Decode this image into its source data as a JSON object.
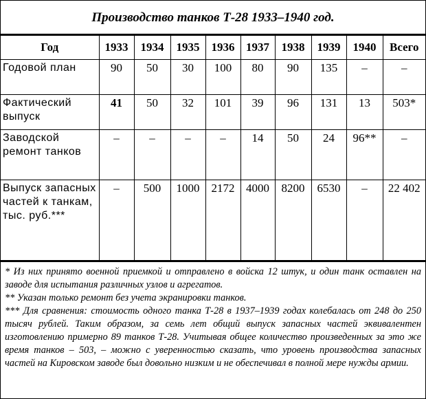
{
  "title": "Производство танков Т-28 1933–1940 год.",
  "header": [
    "Год",
    "1933",
    "1934",
    "1935",
    "1936",
    "1937",
    "1938",
    "1939",
    "1940",
    "Всего"
  ],
  "rows": [
    {
      "label": "Годовой план",
      "values": [
        "90",
        "50",
        "30",
        "100",
        "80",
        "90",
        "135",
        "–",
        "–"
      ]
    },
    {
      "label": "Фактический выпуск",
      "values": [
        "41",
        "50",
        "32",
        "101",
        "39",
        "96",
        "131",
        "13",
        "503*"
      ]
    },
    {
      "label": "Заводской ремонт танков",
      "values": [
        "–",
        "–",
        "–",
        "–",
        "14",
        "50",
        "24",
        "96**",
        "–"
      ]
    },
    {
      "label": "Выпуск запасных частей к танкам, тыс. руб.***",
      "values": [
        "–",
        "500",
        "1000",
        "2172",
        "4000",
        "8200",
        "6530",
        "–",
        "22 402"
      ]
    }
  ],
  "notes": [
    "* Из них принято военной приемкой и отправлено в войска 12 штук, и один танк оставлен на заводе для испытания различных узлов и агрегатов.",
    "** Указан только ремонт без учета экранировки танков.",
    "*** Для сравнения: стоимость одного танка Т-28 в 1937–1939 годах колебалась от 248 до 250 тысяч рублей. Таким образом, за семь лет общий выпуск запасных частей эквивалентен изготовлению примерно 89 танков Т-28. Учитывая общее количество произведенных за это же время танков – 503, – можно с уверенностью сказать, что уровень производства запасных частей на Кировском заводе был довольно низким и не обеспечивал в полной мере нужды армии."
  ]
}
